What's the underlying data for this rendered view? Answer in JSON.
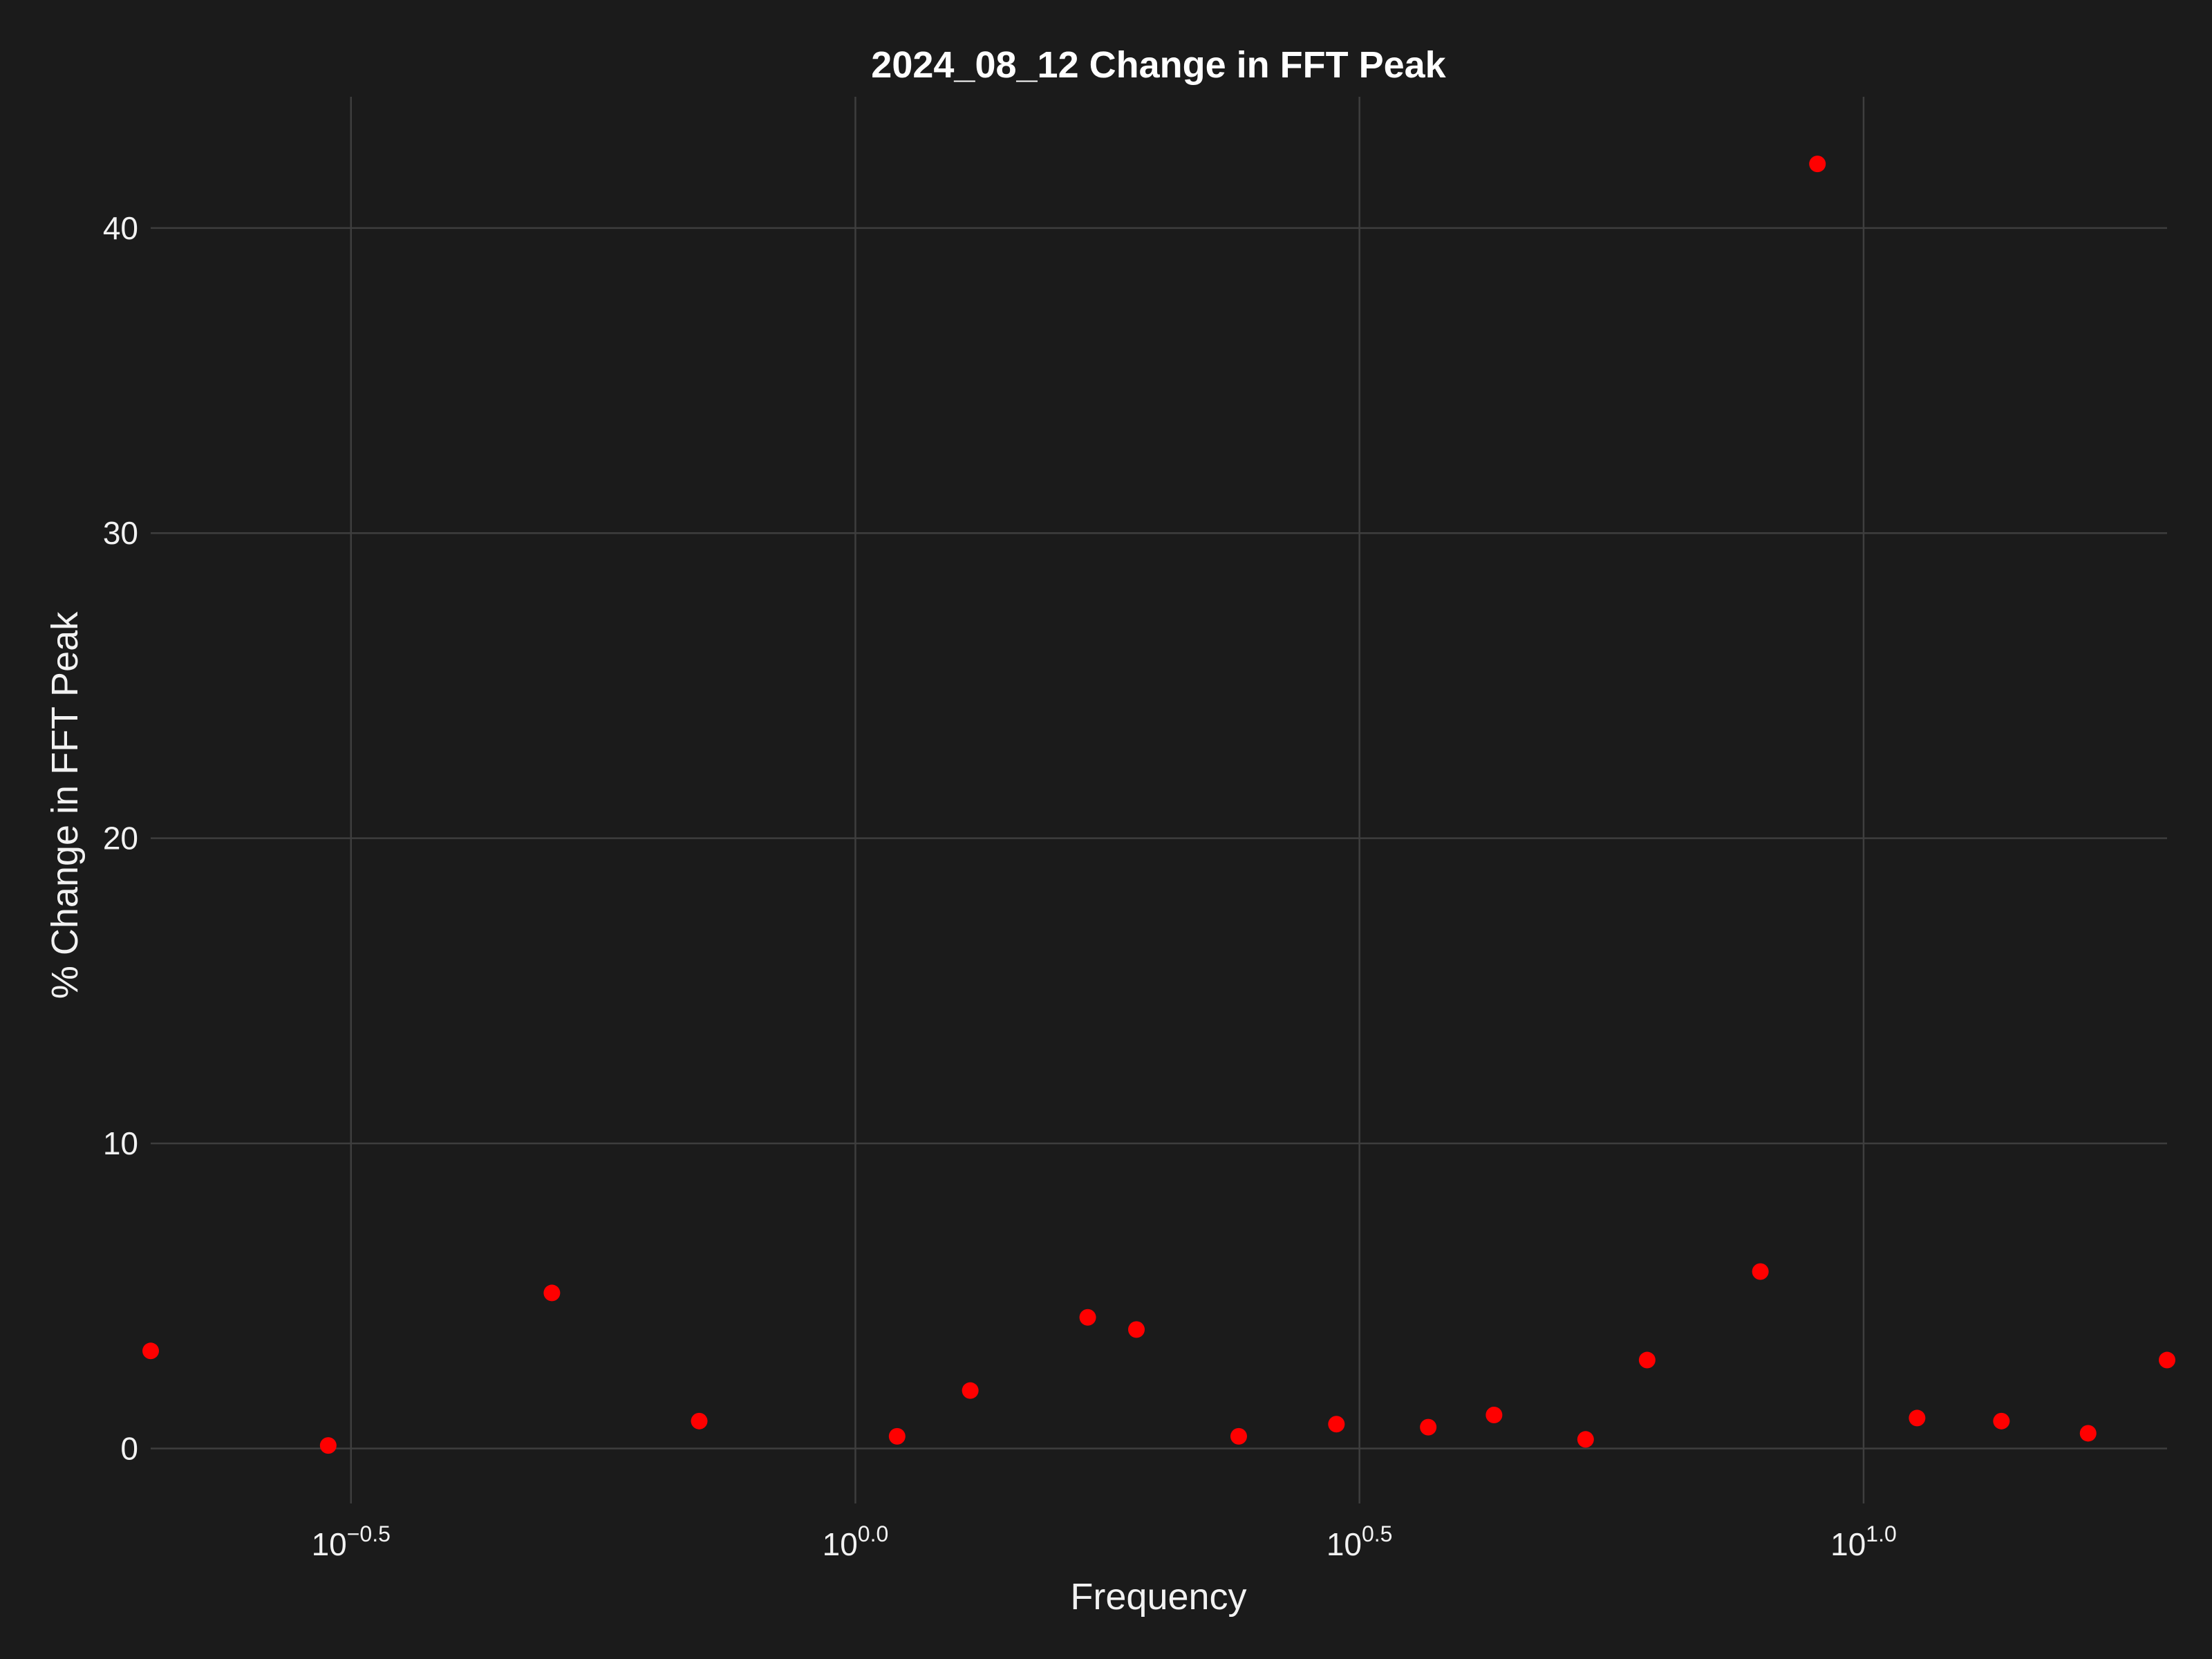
{
  "chart_data": {
    "type": "scatter",
    "title": "2024_08_12 Change in FFT Peak",
    "xlabel": "Frequency",
    "ylabel": "% Change in FFT Peak",
    "xscale": "log10",
    "xlim": [
      0.2,
      20
    ],
    "ylim": [
      -1.8,
      44.3
    ],
    "grid": true,
    "legend": "none",
    "point_color": "#ff0000",
    "background": "#1b1b1b",
    "x_ticks": [
      {
        "value": 0.316,
        "base": "10",
        "exp": "−0.5"
      },
      {
        "value": 1.0,
        "base": "10",
        "exp": "0.0"
      },
      {
        "value": 3.162,
        "base": "10",
        "exp": "0.5"
      },
      {
        "value": 10.0,
        "base": "10",
        "exp": "1.0"
      }
    ],
    "y_ticks": [
      {
        "value": 0,
        "label": "0"
      },
      {
        "value": 10,
        "label": "10"
      },
      {
        "value": 20,
        "label": "20"
      },
      {
        "value": 30,
        "label": "30"
      },
      {
        "value": 40,
        "label": "40"
      }
    ],
    "x": [
      0.2,
      0.3,
      0.5,
      0.7,
      1.1,
      1.3,
      1.7,
      1.9,
      2.4,
      3.0,
      3.7,
      4.3,
      5.3,
      6.1,
      7.9,
      9.0,
      11.3,
      13.7,
      16.7,
      20.0
    ],
    "y": [
      3.2,
      0.1,
      5.1,
      0.9,
      0.4,
      1.9,
      4.3,
      3.9,
      0.4,
      0.8,
      0.7,
      1.1,
      0.3,
      2.9,
      5.8,
      42.1,
      1.0,
      0.9,
      0.5,
      2.9
    ]
  }
}
